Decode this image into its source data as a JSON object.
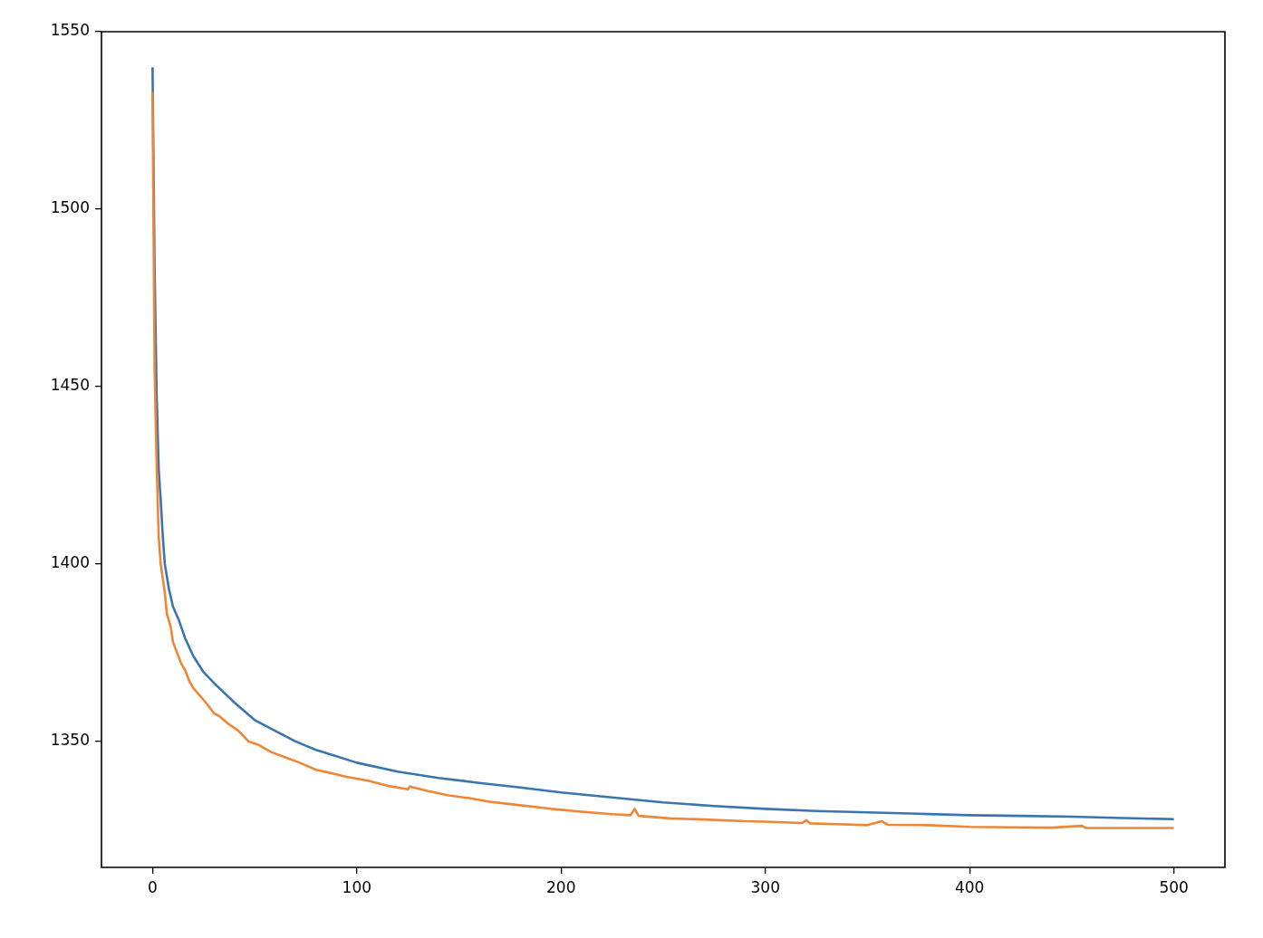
{
  "chart_data": {
    "type": "line",
    "xlim": [
      -25,
      525
    ],
    "ylim": [
      1314.5,
      1550
    ],
    "xticks": [
      0,
      100,
      200,
      300,
      400,
      500
    ],
    "yticks": [
      1350,
      1400,
      1450,
      1500,
      1550
    ],
    "legend": false,
    "grid": false,
    "series": [
      {
        "color": "#3a75b0",
        "x": [
          0,
          1,
          2,
          3,
          4,
          5,
          6,
          8,
          10,
          13,
          16,
          20,
          25,
          30,
          40,
          50,
          60,
          70,
          80,
          90,
          100,
          120,
          140,
          160,
          180,
          200,
          225,
          250,
          275,
          300,
          325,
          350,
          375,
          400,
          425,
          450,
          475,
          500
        ],
        "values": [
          1540,
          1484,
          1448,
          1427,
          1418,
          1408,
          1400,
          1393,
          1388,
          1384,
          1379,
          1374,
          1369.5,
          1366.5,
          1361,
          1356,
          1353,
          1350,
          1347.6,
          1345.8,
          1344,
          1341.5,
          1339.7,
          1338.3,
          1337,
          1335.6,
          1334.2,
          1332.8,
          1331.8,
          1331,
          1330.4,
          1330,
          1329.6,
          1329.2,
          1329,
          1328.8,
          1328.4,
          1328.1
        ]
      },
      {
        "color": "#ef8636",
        "x": [
          0,
          1,
          2,
          3,
          4,
          5,
          6,
          7,
          8,
          9,
          10,
          12,
          14,
          16,
          18,
          20,
          23,
          26,
          30,
          33,
          37,
          42,
          47,
          52,
          58,
          65,
          72,
          80,
          88,
          95,
          105,
          115,
          125,
          126,
          135,
          145,
          155,
          165,
          180,
          195,
          210,
          225,
          234,
          236,
          238,
          253,
          270,
          290,
          300,
          318,
          320,
          322,
          335,
          350,
          357,
          360,
          380,
          400,
          420,
          440,
          455,
          457,
          480,
          500
        ],
        "values": [
          1533,
          1455,
          1428,
          1408,
          1400,
          1396,
          1392,
          1386,
          1384,
          1382,
          1378,
          1375,
          1372,
          1370,
          1367,
          1365,
          1363,
          1361,
          1358,
          1357,
          1355,
          1353,
          1350,
          1349,
          1347,
          1345.5,
          1344,
          1342,
          1341,
          1340,
          1339,
          1337.5,
          1336.5,
          1337.3,
          1336,
          1334.8,
          1334,
          1333,
          1332,
          1331,
          1330.2,
          1329.5,
          1329.2,
          1331,
          1329,
          1328.3,
          1328,
          1327.5,
          1327.4,
          1327,
          1327.8,
          1326.9,
          1326.7,
          1326.4,
          1327.5,
          1326.5,
          1326.4,
          1325.9,
          1325.8,
          1325.7,
          1326.2,
          1325.6,
          1325.6,
          1325.6
        ]
      }
    ]
  }
}
